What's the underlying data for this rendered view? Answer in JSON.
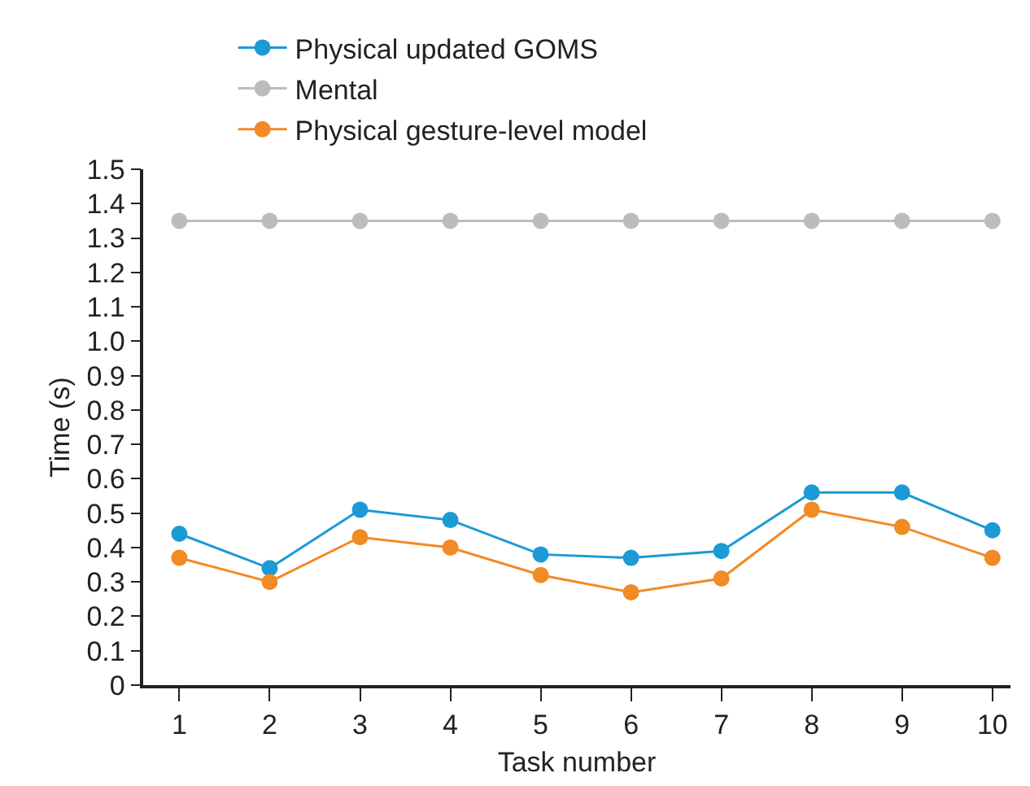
{
  "chart_data": {
    "type": "line",
    "xlabel": "Task number",
    "ylabel": "Time (s)",
    "x": [
      1,
      2,
      3,
      4,
      5,
      6,
      7,
      8,
      9,
      10
    ],
    "series": [
      {
        "name": "Physical updated GOMS",
        "color": "#1b9ad6",
        "values": [
          0.44,
          0.34,
          0.51,
          0.48,
          0.38,
          0.37,
          0.39,
          0.56,
          0.56,
          0.45
        ]
      },
      {
        "name": "Mental",
        "color": "#bcbcbc",
        "values": [
          1.35,
          1.35,
          1.35,
          1.35,
          1.35,
          1.35,
          1.35,
          1.35,
          1.35,
          1.35
        ]
      },
      {
        "name": "Physical gesture-level model",
        "color": "#f28a25",
        "values": [
          0.37,
          0.3,
          0.43,
          0.4,
          0.32,
          0.27,
          0.31,
          0.51,
          0.46,
          0.37
        ]
      }
    ],
    "xlim": [
      0.6,
      10.2
    ],
    "xticks": [
      1,
      2,
      3,
      4,
      5,
      6,
      7,
      8,
      9,
      10
    ],
    "ylim": [
      0,
      1.5
    ],
    "yticks": [
      {
        "value": 0,
        "label": "0"
      },
      0.1,
      0.2,
      0.3,
      0.4,
      0.5,
      0.6,
      0.7,
      0.8,
      0.9,
      {
        "value": 1,
        "label": "1.0"
      },
      1.1,
      1.2,
      1.3,
      1.4,
      1.5
    ],
    "grid": false,
    "legend": "top",
    "marker": "circle",
    "line_style": "solid"
  }
}
